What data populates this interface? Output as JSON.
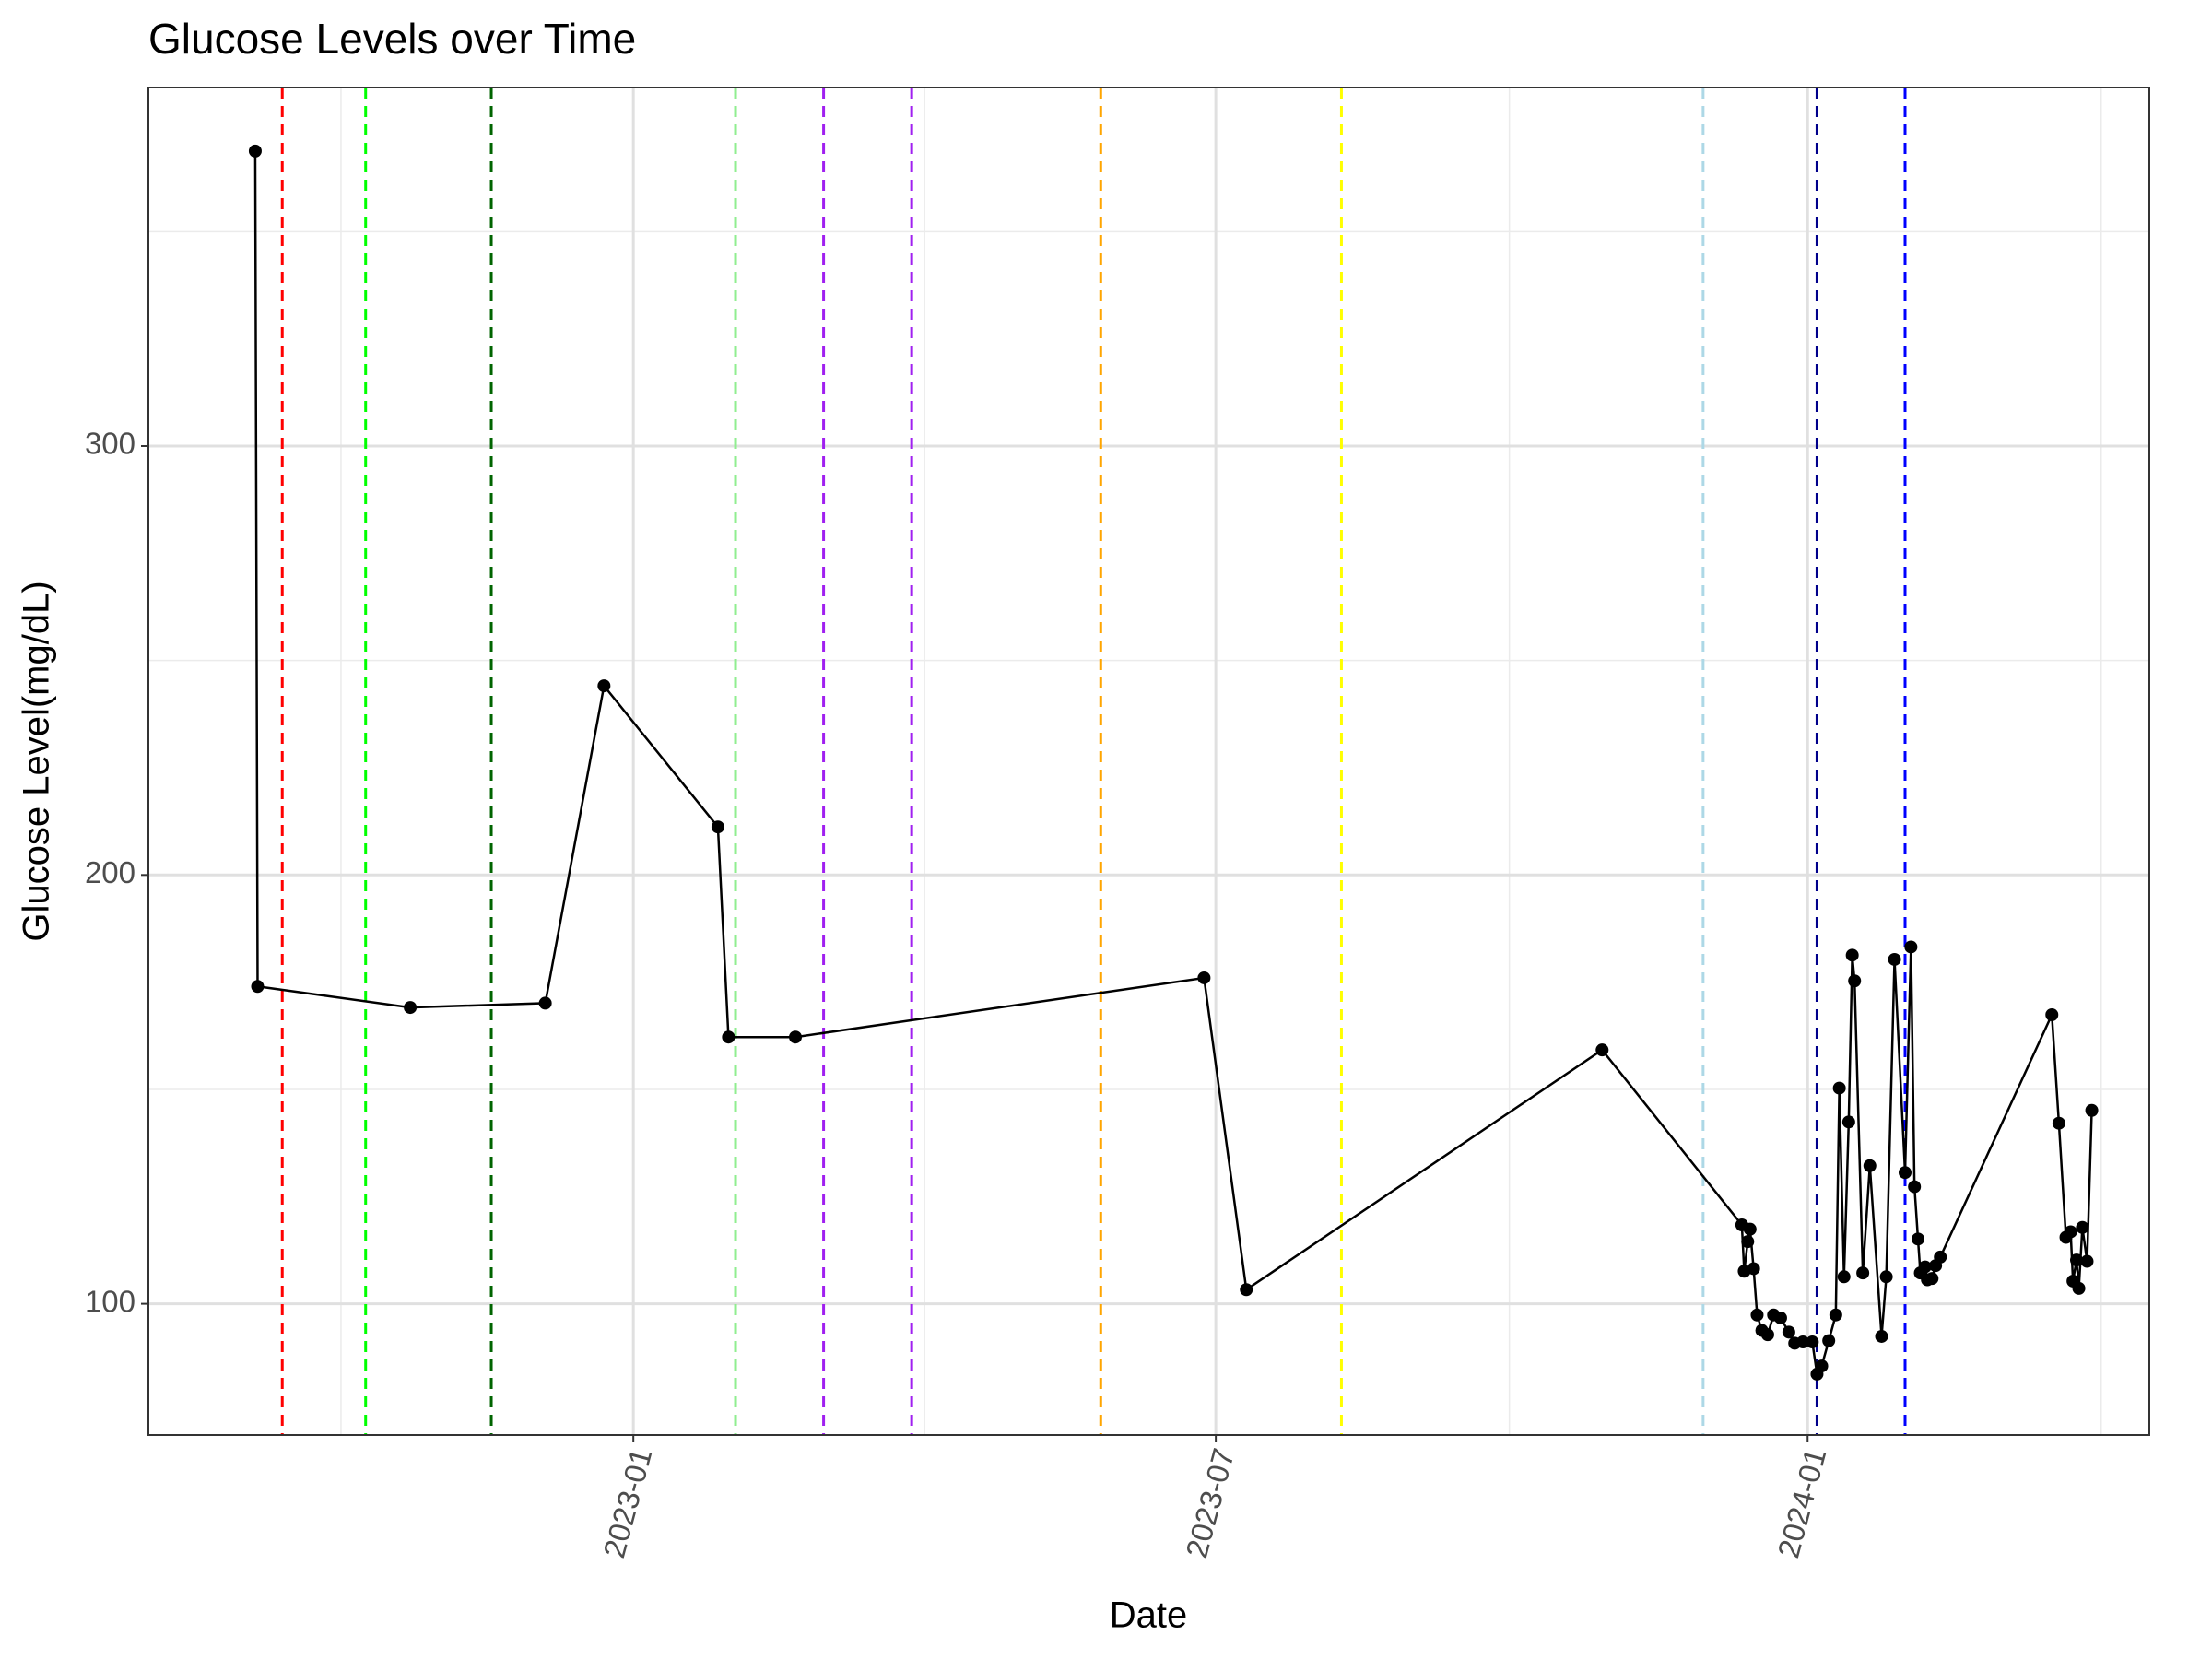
{
  "chart_data": {
    "type": "line",
    "title": "Glucose Levels over Time",
    "x_label": "Date",
    "y_label": "Glucose Level(mg/dL)",
    "x": [
      2022.678,
      2022.68,
      2022.81,
      2022.925,
      2022.975,
      2023.072,
      2023.081,
      2023.138,
      2023.486,
      2023.522,
      2023.825,
      2023.944,
      2023.946,
      2023.949,
      2023.951,
      2023.954,
      2023.957,
      2023.961,
      2023.966,
      2023.971,
      2023.977,
      2023.984,
      2023.989,
      2023.996,
      2024.004,
      2024.008,
      2024.012,
      2024.018,
      2024.024,
      2024.027,
      2024.031,
      2024.035,
      2024.038,
      2024.04,
      2024.047,
      2024.053,
      2024.063,
      2024.067,
      2024.074,
      2024.083,
      2024.088,
      2024.091,
      2024.094,
      2024.096,
      2024.1,
      2024.102,
      2024.106,
      2024.109,
      2024.113,
      2024.208,
      2024.214,
      2024.22,
      2024.224,
      2024.226,
      2024.229,
      2024.231,
      2024.234,
      2024.238,
      2024.242
    ],
    "values": [
      368.8,
      174.0,
      169.1,
      170.1,
      244.1,
      211.2,
      162.2,
      162.2,
      176.0,
      103.3,
      159.2,
      118.4,
      107.6,
      114.5,
      117.4,
      108.2,
      97.4,
      93.8,
      92.8,
      97.4,
      96.7,
      93.4,
      90.8,
      91.1,
      91.1,
      83.6,
      85.5,
      91.4,
      97.4,
      150.3,
      106.3,
      142.4,
      181.3,
      175.3,
      107.2,
      132.2,
      92.4,
      106.3,
      180.3,
      130.6,
      183.2,
      127.3,
      115.1,
      107.2,
      108.6,
      105.6,
      105.9,
      108.9,
      110.9,
      167.4,
      142.1,
      115.5,
      116.8,
      105.3,
      110.2,
      103.6,
      117.8,
      109.9,
      145.1
    ],
    "color": "#000000",
    "vlines": [
      {
        "x": 2022.701,
        "color": "#ff0000"
      },
      {
        "x": 2022.772,
        "color": "#00ff00"
      },
      {
        "x": 2022.879,
        "color": "#006400"
      },
      {
        "x": 2023.087,
        "color": "#90ee90"
      },
      {
        "x": 2023.162,
        "color": "#a020f0"
      },
      {
        "x": 2023.237,
        "color": "#a020f0"
      },
      {
        "x": 2023.398,
        "color": "#ffa500"
      },
      {
        "x": 2023.603,
        "color": "#ffff00"
      },
      {
        "x": 2023.911,
        "color": "#add8e6"
      },
      {
        "x": 2024.008,
        "color": "#00008b"
      },
      {
        "x": 2024.083,
        "color": "#0000ff"
      }
    ],
    "xlim": [
      2022.587,
      2024.291
    ],
    "xticks": [
      {
        "value": 2023.0,
        "label": "2023-01"
      },
      {
        "value": 2023.496,
        "label": "2023-07"
      },
      {
        "value": 2024.0,
        "label": "2024-01"
      }
    ],
    "xminor": [
      2022.751,
      2023.248,
      2023.746,
      2024.25
    ],
    "ylim": [
      69.4,
      383.6
    ],
    "yticks": [
      100,
      200,
      300
    ],
    "yminor": [
      150,
      250,
      350
    ],
    "grid": true
  }
}
